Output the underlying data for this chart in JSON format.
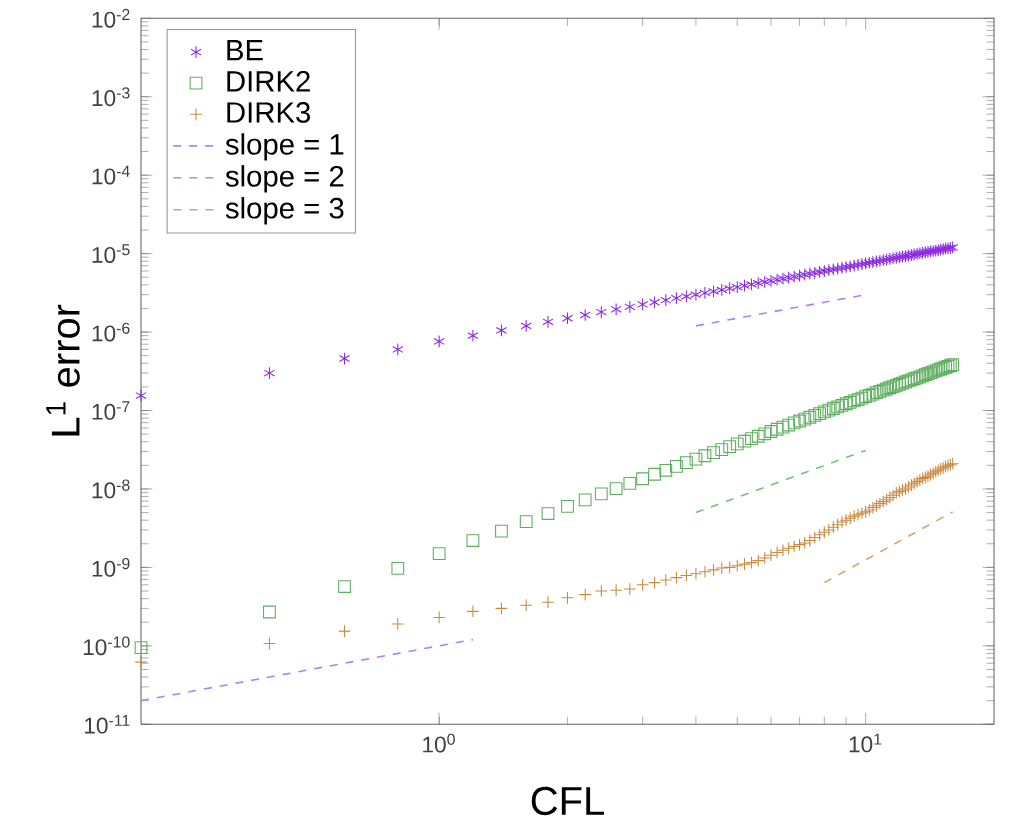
{
  "chart_data": {
    "type": "scatter",
    "xlabel": "CFL",
    "ylabel": "L$^{1}$ error",
    "log": "xy",
    "legend": "top left",
    "grid": false,
    "xlim": [
      0.2,
      20
    ],
    "ylim": [
      1e-11,
      0.01
    ],
    "xticks": [
      {
        "value": 1,
        "label": "10$^{0}$"
      },
      {
        "value": 10,
        "label": "10$^{1}$"
      }
    ],
    "yticks": [
      {
        "value": 1e-11,
        "label": "10$^{-11}$"
      },
      {
        "value": 1e-10,
        "label": "10$^{-10}$"
      },
      {
        "value": 1e-09,
        "label": "10$^{-9}$"
      },
      {
        "value": 1e-08,
        "label": "10$^{-8}$"
      },
      {
        "value": 1e-07,
        "label": "10$^{-7}$"
      },
      {
        "value": 1e-06,
        "label": "10$^{-6}$"
      },
      {
        "value": 1e-05,
        "label": "10$^{-5}$"
      },
      {
        "value": 0.0001,
        "label": "10$^{-4}$"
      },
      {
        "value": 0.001,
        "label": "10$^{-3}$"
      },
      {
        "value": 0.01,
        "label": "10$^{-2}$"
      }
    ],
    "x": [
      0.2,
      0.4,
      0.6,
      0.8,
      1.0,
      1.2,
      1.4,
      1.6,
      1.8,
      2.0,
      2.2,
      2.4,
      2.6,
      2.8,
      3.0,
      3.2,
      3.4,
      3.6,
      3.8,
      4.0,
      4.2,
      4.4,
      4.6,
      4.8,
      5.0,
      5.2,
      5.4,
      5.6,
      5.8,
      6.0,
      6.2,
      6.4,
      6.6,
      6.8,
      7.0,
      7.2,
      7.4,
      7.6,
      7.8,
      8.0,
      8.2,
      8.4,
      8.6,
      8.8,
      9.0,
      9.2,
      9.4,
      9.6,
      9.8,
      10.0,
      10.2,
      10.4,
      10.6,
      10.8,
      11.0,
      11.2,
      11.4,
      11.6,
      11.8,
      12.0,
      12.2,
      12.4,
      12.6,
      12.8,
      13.0,
      13.2,
      13.4,
      13.6,
      13.8,
      14.0,
      14.2,
      14.4,
      14.6,
      14.8,
      15.0,
      15.2,
      15.4,
      15.6,
      15.8,
      16.0
    ],
    "series": [
      {
        "name": "BE",
        "color": "#8a2be2",
        "values": [
          1.55e-07,
          3e-07,
          4.6e-07,
          6e-07,
          7.6e-07,
          9e-07,
          1.05e-06,
          1.2e-06,
          1.35e-06,
          1.5e-06,
          1.65e-06,
          1.8e-06,
          1.95e-06,
          2.1e-06,
          2.25e-06,
          2.4e-06,
          2.55e-06,
          2.7e-06,
          2.85e-06,
          3e-06,
          3.15e-06,
          3.3e-06,
          3.45e-06,
          3.6e-06,
          3.75e-06,
          3.9e-06,
          4.05e-06,
          4.2e-06,
          4.35e-06,
          4.5e-06,
          4.65e-06,
          4.8e-06,
          4.95e-06,
          5.1e-06,
          5.25e-06,
          5.4e-06,
          5.55e-06,
          5.7e-06,
          5.85e-06,
          6e-06,
          6.15e-06,
          6.3e-06,
          6.45e-06,
          6.6e-06,
          6.75e-06,
          6.9e-06,
          7.05e-06,
          7.2e-06,
          7.35e-06,
          7.5e-06,
          7.65e-06,
          7.8e-06,
          7.95e-06,
          8.1e-06,
          8.25e-06,
          8.4e-06,
          8.55e-06,
          8.7e-06,
          8.85e-06,
          9e-06,
          9.15e-06,
          9.3e-06,
          9.45e-06,
          9.6e-06,
          9.75e-06,
          9.9e-06,
          1.005e-05,
          1.02e-05,
          1.035e-05,
          1.05e-05,
          1.065e-05,
          1.08e-05,
          1.095e-05,
          1.11e-05,
          1.125e-05,
          1.14e-05,
          1.155e-05,
          1.17e-05,
          1.185e-05,
          1.2e-05
        ]
      },
      {
        "name": "DIRK2",
        "marker": "square",
        "color": "#5fae5f",
        "values": [
          9.5e-11,
          2.7e-10,
          5.7e-10,
          9.7e-10,
          1.5e-09,
          2.2e-09,
          2.9e-09,
          3.84e-09,
          4.86e-09,
          6e-09,
          7.26e-09,
          8.64e-09,
          1.01e-08,
          1.18e-08,
          1.35e-08,
          1.54e-08,
          1.73e-08,
          1.94e-08,
          2.17e-08,
          2.4e-08,
          2.65e-08,
          2.9e-08,
          3.17e-08,
          3.46e-08,
          3.75e-08,
          4.06e-08,
          4.37e-08,
          4.7e-08,
          5.05e-08,
          5.4e-08,
          5.77e-08,
          6.14e-08,
          6.53e-08,
          6.94e-08,
          7.35e-08,
          7.78e-08,
          8.21e-08,
          8.66e-08,
          9.13e-08,
          9.6e-08,
          1.01e-07,
          1.06e-07,
          1.11e-07,
          1.16e-07,
          1.22e-07,
          1.27e-07,
          1.33e-07,
          1.38e-07,
          1.44e-07,
          1.5e-07,
          1.56e-07,
          1.62e-07,
          1.69e-07,
          1.75e-07,
          1.82e-07,
          1.88e-07,
          1.95e-07,
          2.02e-07,
          2.09e-07,
          2.16e-07,
          2.23e-07,
          2.31e-07,
          2.38e-07,
          2.46e-07,
          2.54e-07,
          2.61e-07,
          2.69e-07,
          2.77e-07,
          2.86e-07,
          2.94e-07,
          3.02e-07,
          3.11e-07,
          3.2e-07,
          3.29e-07,
          3.38e-07,
          3.47e-07,
          3.56e-07,
          3.65e-07,
          3.74e-07,
          3.84e-07
        ]
      },
      {
        "name": "DIRK3",
        "marker": "cross",
        "color": "#c98a3e",
        "values": [
          6.2e-11,
          1.07e-10,
          1.54e-10,
          1.9e-10,
          2.3e-10,
          2.75e-10,
          3e-10,
          3.3e-10,
          3.6e-10,
          4.1e-10,
          4.5e-10,
          5e-10,
          5.1e-10,
          5.3e-10,
          6e-10,
          6.4e-10,
          6.9e-10,
          7.4e-10,
          7.9e-10,
          8.3e-10,
          8.8e-10,
          9.3e-10,
          9.8e-10,
          1e-09,
          1.05e-09,
          1.1e-09,
          1.15e-09,
          1.22e-09,
          1.32e-09,
          1.43e-09,
          1.55e-09,
          1.65e-09,
          1.75e-09,
          1.85e-09,
          1.95e-09,
          2.05e-09,
          2.2e-09,
          2.4e-09,
          2.6e-09,
          2.8e-09,
          3e-09,
          3.25e-09,
          3.5e-09,
          3.8e-09,
          4e-09,
          4.25e-09,
          4.5e-09,
          4.7e-09,
          4.9e-09,
          5.1e-09,
          5.4e-09,
          5.8e-09,
          6.1e-09,
          6.5e-09,
          6.9e-09,
          7.3e-09,
          7.8e-09,
          8.3e-09,
          8.9e-09,
          9.3e-09,
          9.7e-09,
          1e-08,
          1.06e-08,
          1.12e-08,
          1.18e-08,
          1.24e-08,
          1.3e-08,
          1.36e-08,
          1.4e-08,
          1.45e-08,
          1.52e-08,
          1.59e-08,
          1.66e-08,
          1.73e-08,
          1.8e-08,
          1.86e-08,
          1.92e-08,
          1.98e-08,
          2.04e-08,
          2.1e-08
        ]
      },
      {
        "name": "slope = 1",
        "type": "line",
        "marker": "none",
        "line_style": "dashed",
        "color": "#b57ef0",
        "x": [
          0.2,
          1.2,
          2.0,
          4.0,
          10.0
        ],
        "values": [
          2e-11,
          1.2e-10,
          null,
          1.2e-06,
          3e-06
        ]
      },
      {
        "name": "slope = 2",
        "type": "line",
        "marker": "none",
        "line_style": "dashed",
        "color": "#74c274",
        "x": [
          4.0,
          10.0
        ],
        "values": [
          5e-09,
          3.1e-08
        ]
      },
      {
        "name": "slope = 3",
        "type": "line",
        "marker": "none",
        "line_style": "dashed",
        "color": "#d4a66e",
        "x": [
          8.0,
          16.0
        ],
        "values": [
          6.4e-10,
          5.1e-09
        ]
      }
    ]
  }
}
